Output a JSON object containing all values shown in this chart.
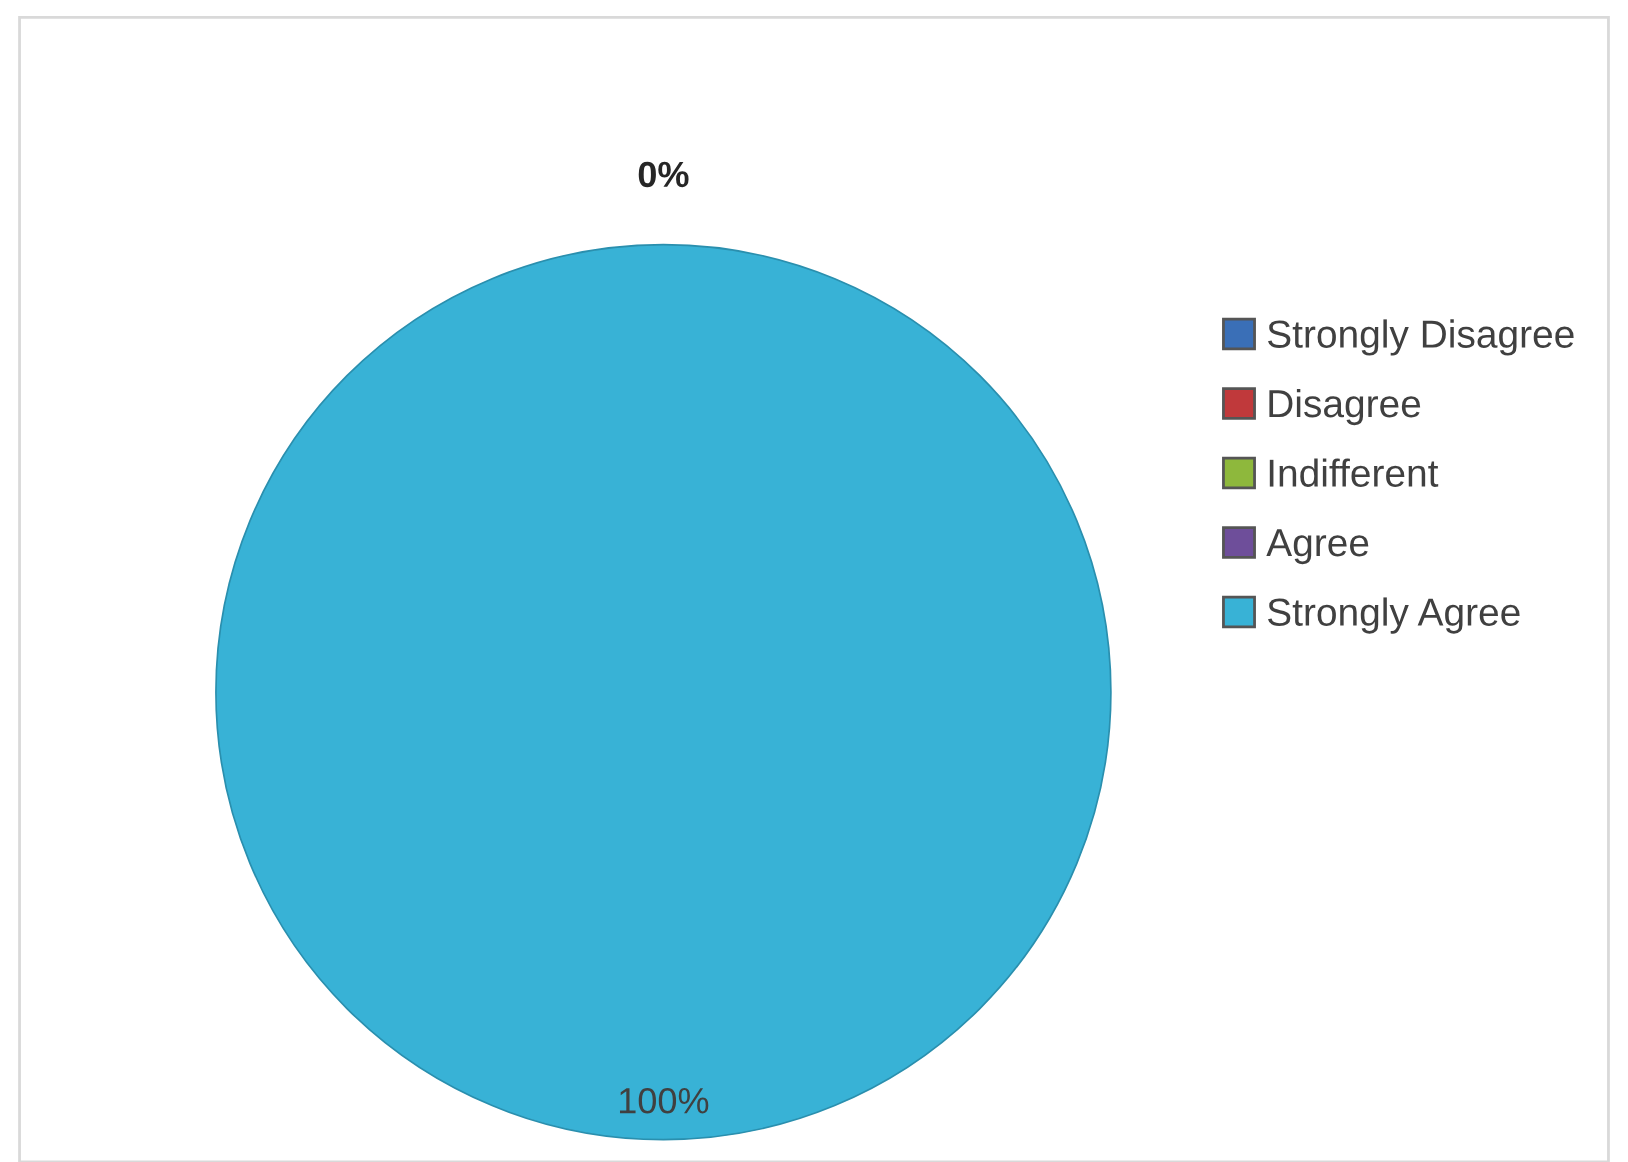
{
  "chart_data": {
    "type": "pie",
    "categories": [
      "Strongly Disagree",
      "Disagree",
      "Indifferent",
      "Agree",
      "Strongly Agree"
    ],
    "values": [
      0,
      0,
      0,
      0,
      100
    ],
    "colors": [
      "#3a6fb7",
      "#c0393b",
      "#8eb83c",
      "#6e4e9a",
      "#38b2d6"
    ],
    "value_labels": [
      null,
      null,
      null,
      "0%",
      "100%"
    ],
    "legend": "right"
  }
}
